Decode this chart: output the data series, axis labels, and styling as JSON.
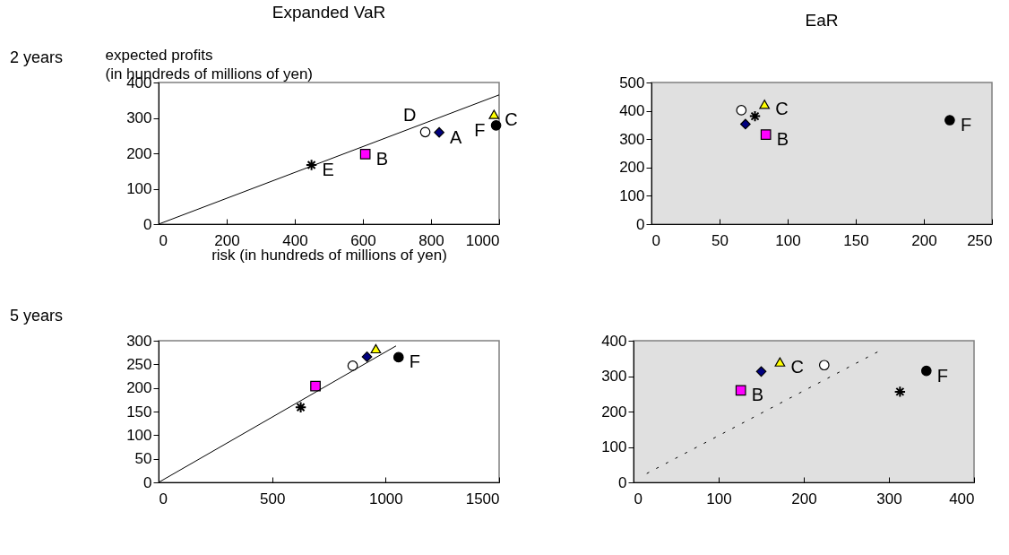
{
  "chart_data": [
    {
      "type": "scatter",
      "title": "Expanded VaR",
      "xlabel": "risk (in hundreds of millions of yen)",
      "ylabel": "expected profits (in hundreds of millions of yen)",
      "annotations": [
        "2 years"
      ],
      "xlim": [
        0,
        1000
      ],
      "ylim": [
        0,
        400
      ],
      "xticks": [
        0,
        200,
        400,
        600,
        800,
        1000
      ],
      "yticks": [
        0,
        100,
        200,
        300,
        400
      ],
      "series": [
        {
          "name": "A",
          "color": "#000080",
          "marker": "diamond",
          "x": [
            824
          ],
          "values": [
            259
          ]
        },
        {
          "name": "B",
          "color": "#ff00ff",
          "marker": "square",
          "x": [
            607
          ],
          "values": [
            198
          ]
        },
        {
          "name": "C",
          "color": "#ffff00",
          "marker": "triangle",
          "x": [
            985
          ],
          "values": [
            310
          ]
        },
        {
          "name": "D",
          "color": "#ffffff",
          "marker": "circle",
          "x": [
            783
          ],
          "values": [
            260
          ]
        },
        {
          "name": "E",
          "color": "#000000",
          "marker": "cross",
          "x": [
            449
          ],
          "values": [
            167
          ]
        },
        {
          "name": "F",
          "color": "#000000",
          "marker": "circle",
          "x": [
            991
          ],
          "values": [
            279
          ]
        },
        {
          "type": "line",
          "color": "#000000",
          "line_style": "solid",
          "x": [
            0,
            1000
          ],
          "values": [
            0,
            365
          ]
        }
      ]
    },
    {
      "type": "scatter",
      "title": "EaR",
      "xlim": [
        0,
        250
      ],
      "ylim": [
        0,
        500
      ],
      "xticks": [
        0,
        50,
        100,
        150,
        200,
        250
      ],
      "yticks": [
        0,
        100,
        200,
        300,
        400,
        500
      ],
      "series": [
        {
          "color": "#000080",
          "marker": "diamond",
          "x": [
            69
          ],
          "values": [
            353
          ]
        },
        {
          "name": "B",
          "color": "#ff00ff",
          "marker": "square",
          "x": [
            84
          ],
          "values": [
            316
          ]
        },
        {
          "name": "C",
          "color": "#ffff00",
          "marker": "triangle",
          "x": [
            83
          ],
          "values": [
            423
          ]
        },
        {
          "color": "#ffffff",
          "marker": "circle",
          "x": [
            66
          ],
          "values": [
            402
          ]
        },
        {
          "color": "#000000",
          "marker": "cross",
          "x": [
            76
          ],
          "values": [
            381
          ]
        },
        {
          "name": "F",
          "color": "#000000",
          "marker": "circle",
          "x": [
            219
          ],
          "values": [
            367
          ]
        }
      ]
    },
    {
      "type": "scatter",
      "annotations": [
        "5 years"
      ],
      "xlim": [
        0,
        1500
      ],
      "ylim": [
        0,
        300
      ],
      "xticks": [
        0,
        500,
        1000,
        1500
      ],
      "yticks": [
        0,
        50,
        100,
        150,
        200,
        250,
        300
      ],
      "series": [
        {
          "color": "#000080",
          "marker": "diamond",
          "x": [
            918
          ],
          "values": [
            266
          ]
        },
        {
          "color": "#ff00ff",
          "marker": "square",
          "x": [
            691
          ],
          "values": [
            204
          ]
        },
        {
          "color": "#ffff00",
          "marker": "triangle",
          "x": [
            957
          ],
          "values": [
            283
          ]
        },
        {
          "color": "#ffffff",
          "marker": "circle",
          "x": [
            855
          ],
          "values": [
            247
          ]
        },
        {
          "color": "#000000",
          "marker": "cross",
          "x": [
            626
          ],
          "values": [
            159
          ]
        },
        {
          "name": "F",
          "color": "#000000",
          "marker": "circle",
          "x": [
            1057
          ],
          "values": [
            265
          ]
        },
        {
          "type": "line",
          "color": "#000000",
          "line_style": "solid",
          "x": [
            0,
            1046
          ],
          "values": [
            0,
            289
          ]
        }
      ]
    },
    {
      "type": "scatter",
      "xlim": [
        0,
        400
      ],
      "ylim": [
        0,
        400
      ],
      "xticks": [
        0,
        100,
        200,
        300,
        400
      ],
      "yticks": [
        0,
        100,
        200,
        300,
        400
      ],
      "series": [
        {
          "color": "#000080",
          "marker": "diamond",
          "x": [
            150
          ],
          "values": [
            313
          ]
        },
        {
          "name": "B",
          "color": "#ff00ff",
          "marker": "square",
          "x": [
            126
          ],
          "values": [
            260
          ]
        },
        {
          "name": "C",
          "color": "#ffff00",
          "marker": "triangle",
          "x": [
            172
          ],
          "values": [
            340
          ]
        },
        {
          "color": "#ffffff",
          "marker": "circle",
          "x": [
            224
          ],
          "values": [
            331
          ]
        },
        {
          "color": "#000000",
          "marker": "cross",
          "x": [
            313
          ],
          "values": [
            256
          ]
        },
        {
          "name": "F",
          "color": "#000000",
          "marker": "circle",
          "x": [
            344
          ],
          "values": [
            315
          ]
        },
        {
          "type": "line",
          "color": "#000000",
          "line_style": "dashed",
          "x": [
            15.5,
            288
          ],
          "values": [
            25,
            370
          ]
        }
      ]
    }
  ]
}
